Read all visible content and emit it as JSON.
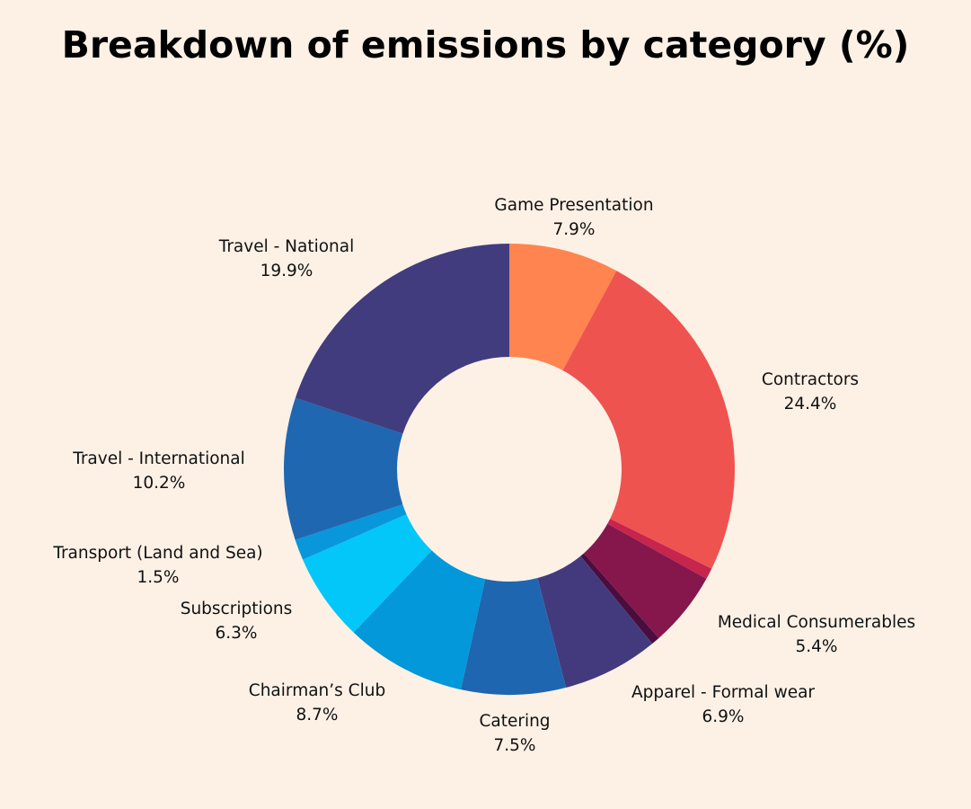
{
  "chart_data": {
    "type": "pie",
    "variant": "donut",
    "title": "Breakdown of emissions by category (%)",
    "legend": "none",
    "slices": [
      {
        "label": "Game Presentation",
        "value": 7.9,
        "value_label": "7.9%",
        "color": "#FF8450"
      },
      {
        "label": "Contractors",
        "value": 24.4,
        "value_label": "24.4%",
        "color": "#EF5350"
      },
      {
        "label": "",
        "value": 0.8,
        "value_label": "",
        "color": "#C7254E"
      },
      {
        "label": "Medical Consumerables",
        "value": 5.4,
        "value_label": "5.4%",
        "color": "#86174D"
      },
      {
        "label": "",
        "value": 0.6,
        "value_label": "",
        "color": "#4A0D3E"
      },
      {
        "label": "Apparel - Formal wear",
        "value": 6.9,
        "value_label": "6.9%",
        "color": "#433A7E"
      },
      {
        "label": "Catering",
        "value": 7.5,
        "value_label": "7.5%",
        "color": "#1F66B0"
      },
      {
        "label": "Chairman’s Club",
        "value": 8.7,
        "value_label": "8.7%",
        "color": "#0298DA"
      },
      {
        "label": "Subscriptions",
        "value": 6.3,
        "value_label": "6.3%",
        "color": "#03C7F9"
      },
      {
        "label": "Transport (Land and Sea)",
        "value": 1.5,
        "value_label": "1.5%",
        "color": "#0897DA"
      },
      {
        "label": "Travel - International",
        "value": 10.2,
        "value_label": "10.2%",
        "color": "#1F67B1"
      },
      {
        "label": "Travel - National",
        "value": 19.9,
        "value_label": "19.9%",
        "color": "#413C7E"
      }
    ]
  }
}
